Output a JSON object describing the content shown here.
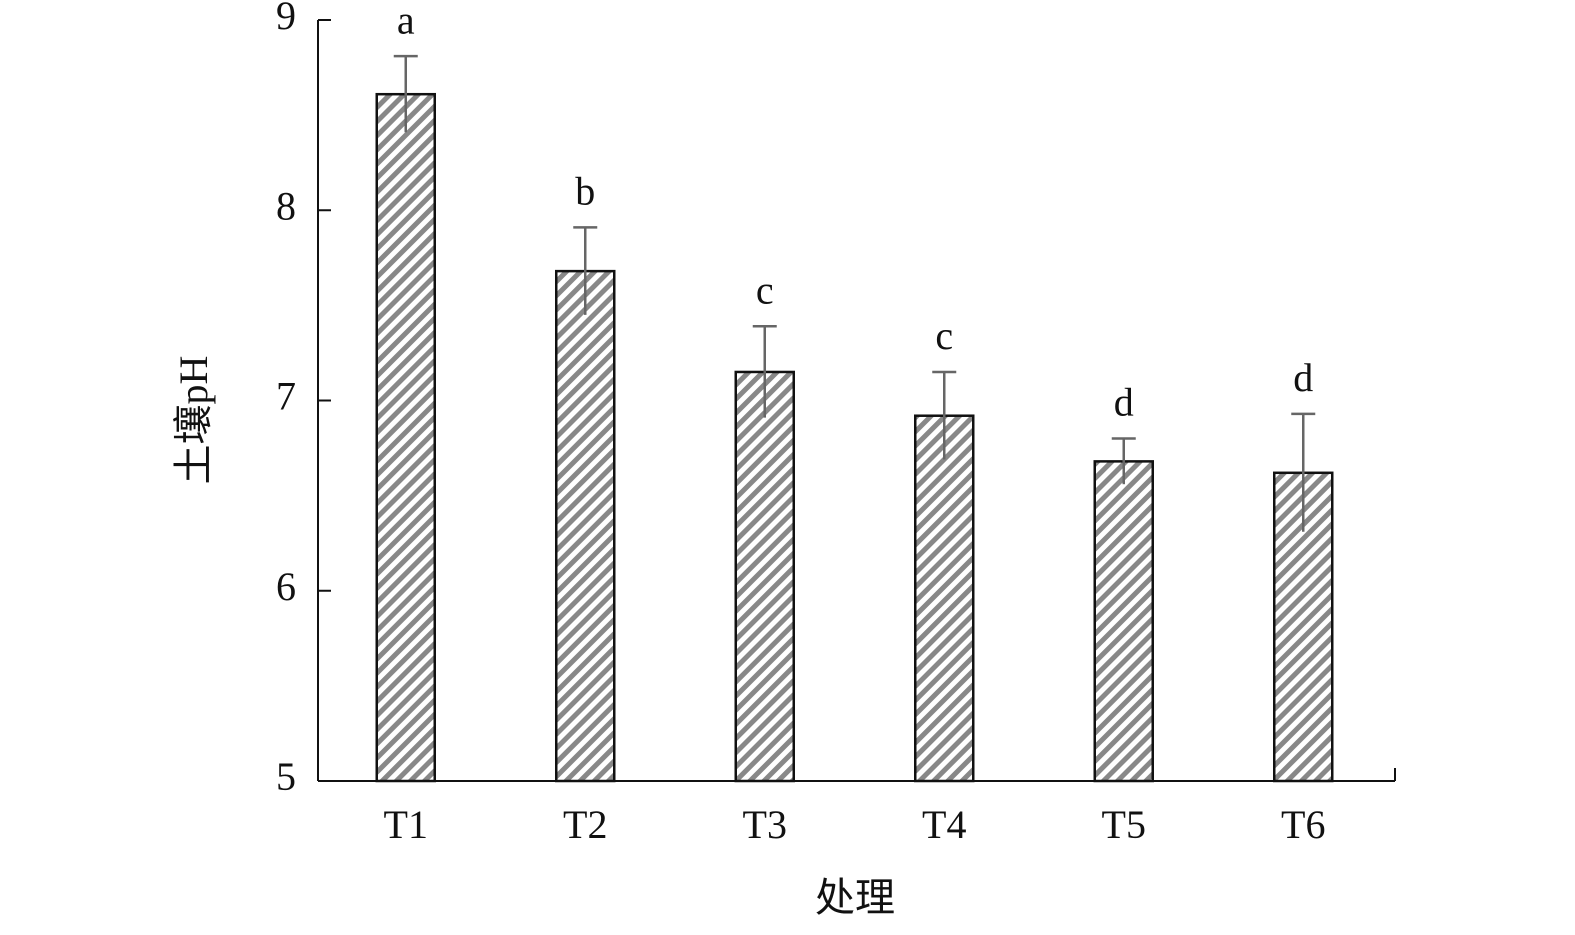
{
  "chart_data": {
    "type": "bar",
    "x_label": "处理",
    "y_label": "土壤pH",
    "categories": [
      "T1",
      "T2",
      "T3",
      "T4",
      "T5",
      "T6"
    ],
    "values": [
      8.61,
      7.68,
      7.15,
      6.92,
      6.68,
      6.62
    ],
    "errors": [
      0.2,
      0.23,
      0.24,
      0.23,
      0.12,
      0.31
    ],
    "annotations": [
      "a",
      "b",
      "c",
      "c",
      "d",
      "d"
    ],
    "color": "#888888",
    "ylim": [
      5,
      9
    ],
    "yticks": [
      5,
      6,
      7,
      8,
      9
    ]
  }
}
